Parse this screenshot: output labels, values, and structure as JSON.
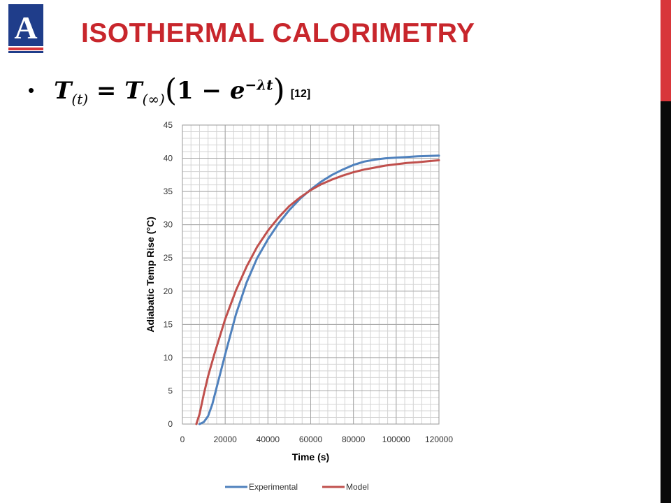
{
  "slide": {
    "logo_letter": "A",
    "title": "ISOTHERMAL CALORIMETRY",
    "bullet": "•",
    "formula": {
      "lhs": "T",
      "lhs_sub": "(t)",
      "eq": "=",
      "rhs": "T",
      "rhs_sub": "(∞)",
      "one": "1",
      "minus": "−",
      "e": "e",
      "exp": "−λt"
    },
    "citation": "[12]"
  },
  "colors": {
    "title_red": "#c8262c",
    "experimental": "#4f81bd",
    "model": "#c0504d",
    "sidebar_red": "#d8363a",
    "sidebar_black": "#0a0a0a",
    "logo_blue": "#1f3d8a"
  },
  "chart_data": {
    "type": "line",
    "xlabel": "Time (s)",
    "ylabel": "Adiabatic Temp Rise (°C)",
    "xlim": [
      0,
      120000
    ],
    "ylim": [
      0,
      45
    ],
    "xticks": [
      0,
      20000,
      40000,
      60000,
      80000,
      100000,
      120000
    ],
    "yticks": [
      0,
      5,
      10,
      15,
      20,
      25,
      30,
      35,
      40,
      45
    ],
    "grid": true,
    "legend_position": "bottom",
    "series": [
      {
        "name": "Experimental",
        "color": "#4f81bd",
        "x": [
          8000,
          10000,
          12000,
          14000,
          16000,
          18000,
          20000,
          25000,
          30000,
          35000,
          40000,
          45000,
          50000,
          55000,
          60000,
          65000,
          70000,
          75000,
          80000,
          85000,
          90000,
          95000,
          100000,
          105000,
          110000,
          115000,
          120000
        ],
        "y": [
          0,
          0.3,
          1.2,
          3,
          5.5,
          8,
          10.5,
          16.5,
          21.3,
          25,
          27.8,
          30.2,
          32.2,
          33.9,
          35.3,
          36.5,
          37.5,
          38.3,
          39,
          39.5,
          39.8,
          40,
          40.1,
          40.2,
          40.3,
          40.35,
          40.4
        ]
      },
      {
        "name": "Model",
        "color": "#c0504d",
        "x": [
          6500,
          8000,
          10000,
          12000,
          15000,
          20000,
          25000,
          30000,
          35000,
          40000,
          45000,
          50000,
          55000,
          60000,
          65000,
          70000,
          75000,
          80000,
          85000,
          90000,
          95000,
          100000,
          105000,
          110000,
          115000,
          120000
        ],
        "y": [
          0,
          1.5,
          4.5,
          7.2,
          10.6,
          15.8,
          20.1,
          23.7,
          26.7,
          29.1,
          31.1,
          32.8,
          34.1,
          35.2,
          36.1,
          36.8,
          37.4,
          37.9,
          38.3,
          38.6,
          38.9,
          39.1,
          39.3,
          39.4,
          39.55,
          39.7
        ]
      }
    ]
  }
}
